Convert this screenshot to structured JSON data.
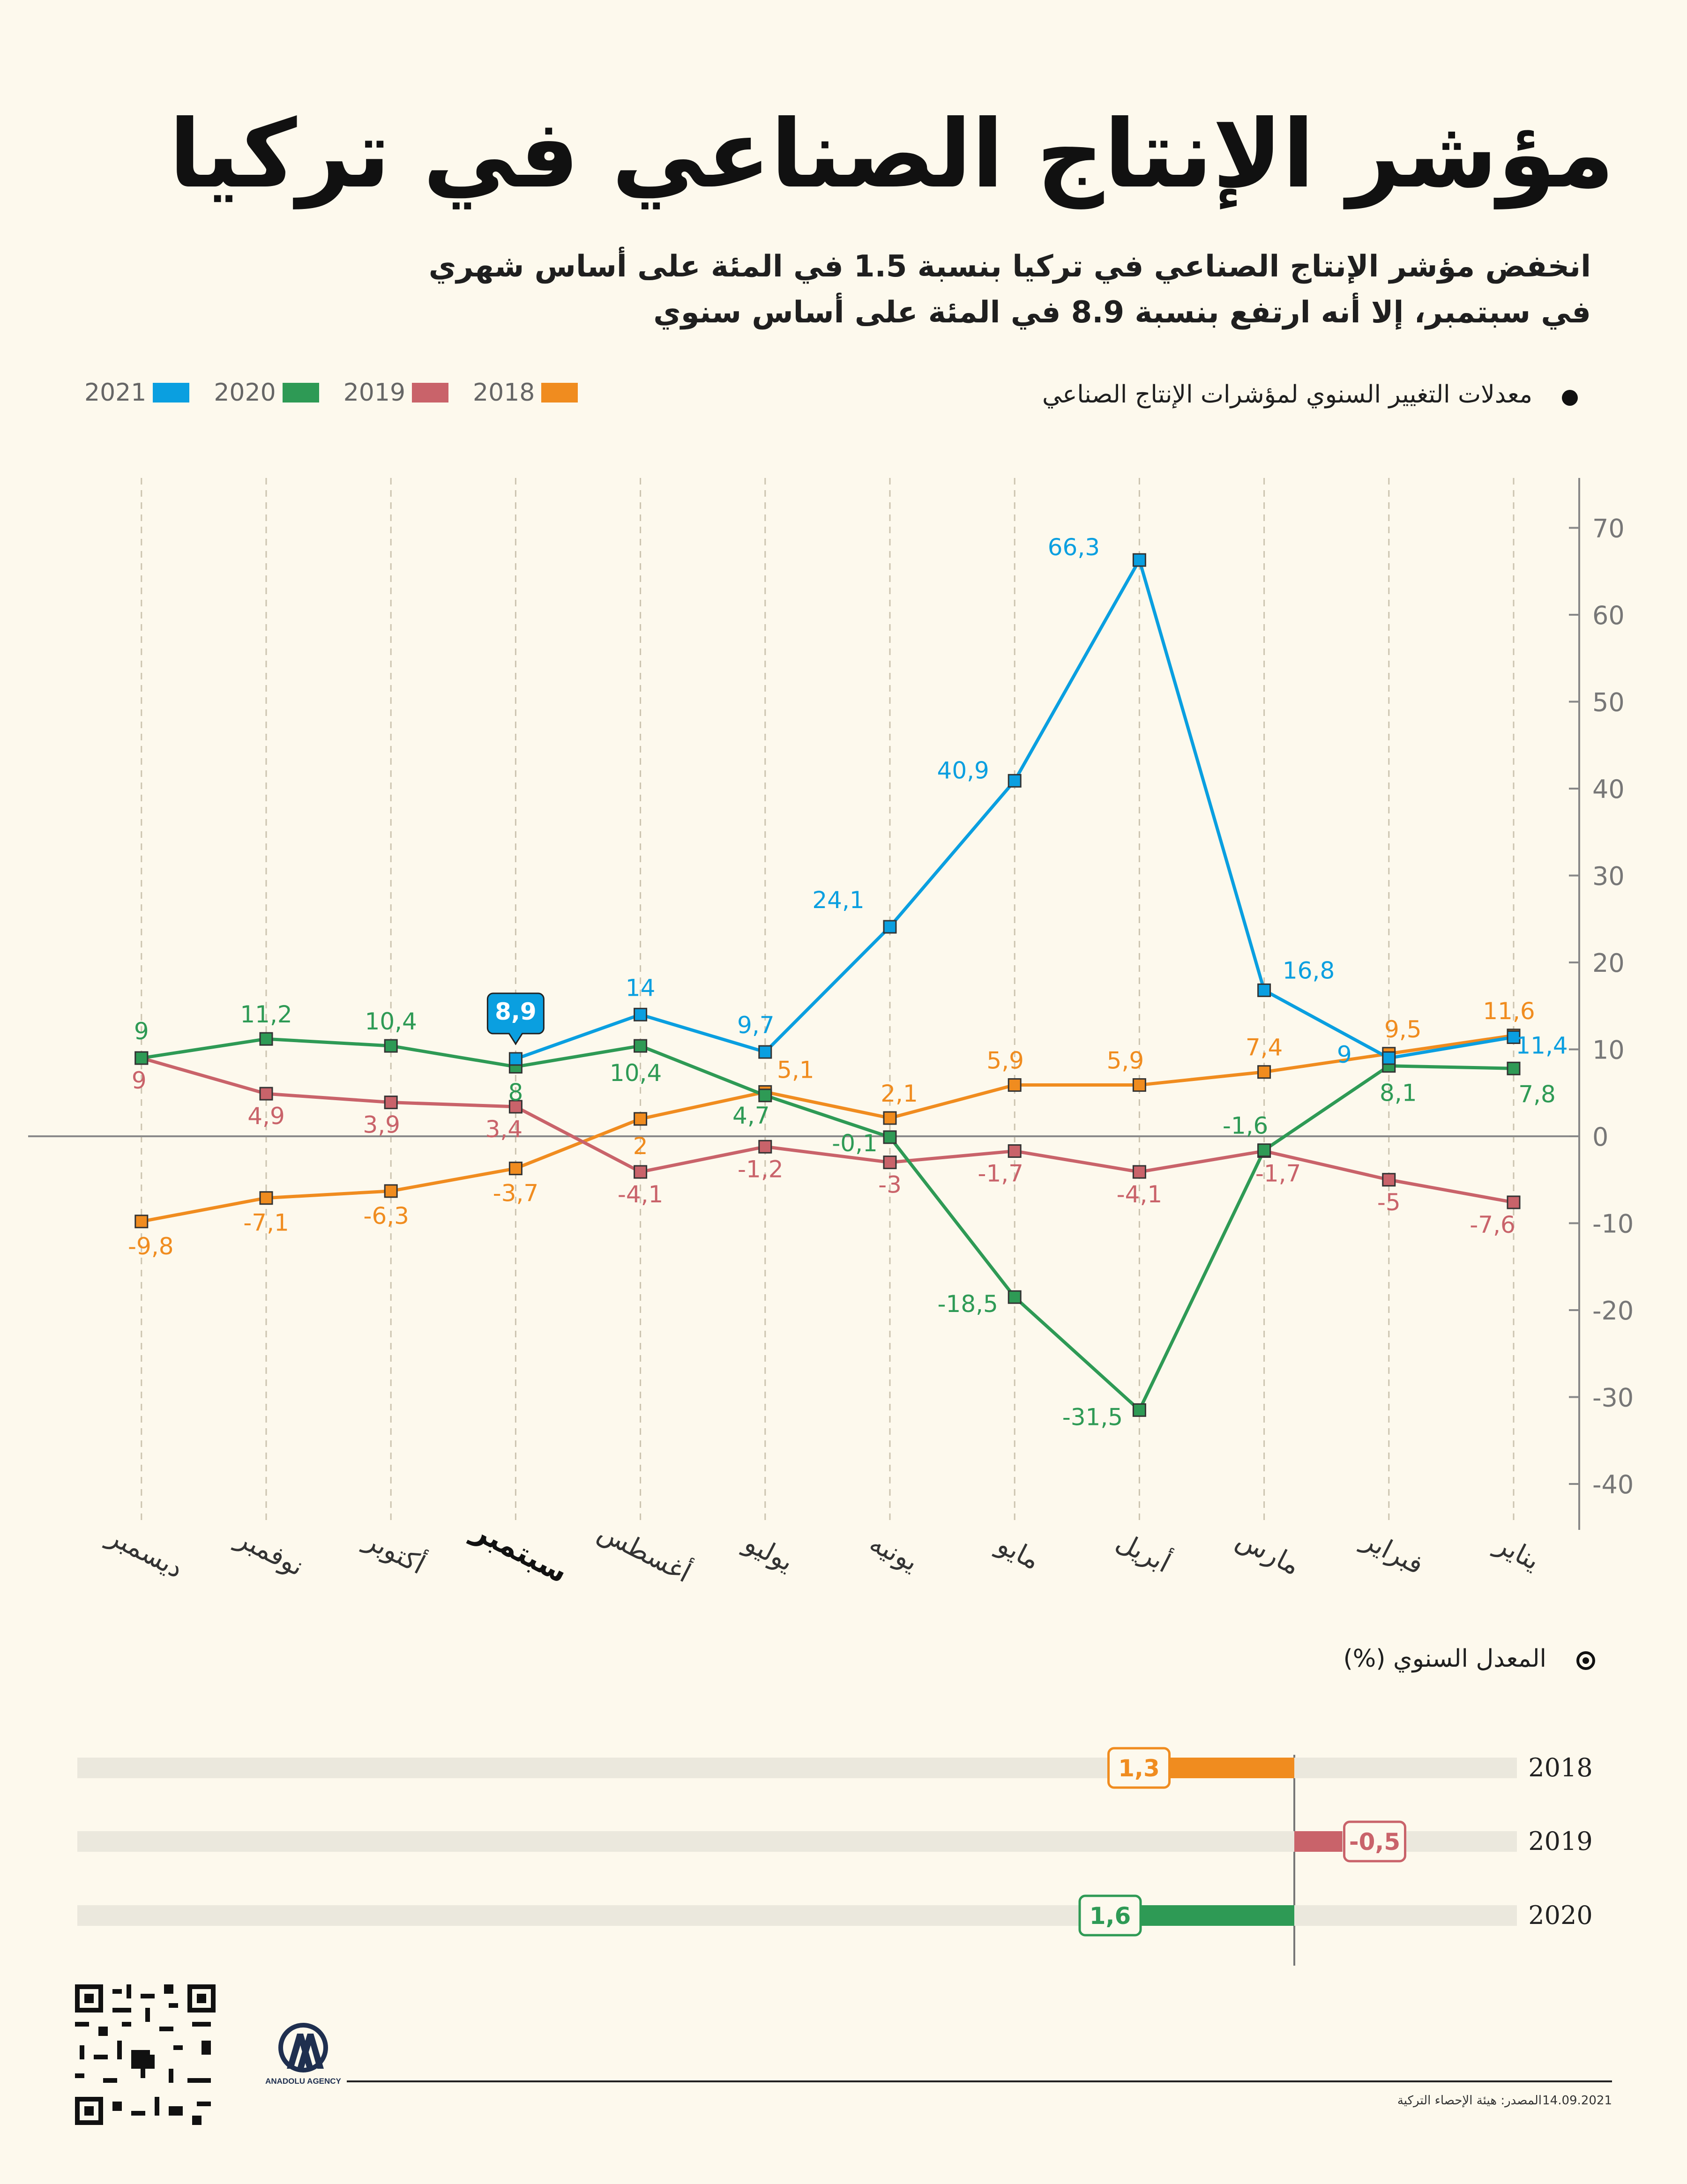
{
  "title": "مؤشر الإنتاج الصناعي في تركيا",
  "subtitle_line1": "انخفض مؤشر الإنتاج الصناعي في تركيا بنسبة 1.5 في المئة على أساس شهري",
  "subtitle_line2": "في سبتمبر، إلا أنه ارتفع بنسبة 8.9 في المئة على أساس سنوي",
  "chart_section_label": "معدلات التغيير السنوي لمؤشرات الإنتاج الصناعي",
  "legend": [
    {
      "label": "2021",
      "color": "#0a9fe0"
    },
    {
      "label": "2020",
      "color": "#2e9a55"
    },
    {
      "label": "2019",
      "color": "#c9636a"
    },
    {
      "label": "2018",
      "color": "#f08c1f"
    }
  ],
  "chart_data": {
    "type": "line",
    "x": [
      "يناير",
      "فبراير",
      "مارس",
      "أبريل",
      "مايو",
      "يونيه",
      "يوليو",
      "أغسطس",
      "سبتمبر",
      "أكتوبر",
      "نوفمبر",
      "ديسمبر"
    ],
    "highlight_x": "سبتمبر",
    "ylim": [
      -45,
      75
    ],
    "yticks": [
      70,
      60,
      50,
      40,
      30,
      20,
      10,
      0,
      -10,
      -20,
      -30,
      -40
    ],
    "grid": "vertical dashed",
    "series": [
      {
        "name": "2021",
        "color": "#0a9fe0",
        "values": [
          11.4,
          9,
          16.8,
          66.3,
          40.9,
          24.1,
          9.7,
          14,
          8.9,
          null,
          null,
          null
        ],
        "labels": [
          "11,4",
          "9",
          "16,8",
          "66,3",
          "40,9",
          "24,1",
          "9,7",
          "14",
          "8,9",
          "",
          "",
          ""
        ]
      },
      {
        "name": "2020",
        "color": "#2e9a55",
        "values": [
          7.8,
          8.1,
          -1.6,
          -31.5,
          -18.5,
          -0.1,
          4.7,
          10.4,
          8,
          10.4,
          11.2,
          9
        ],
        "labels": [
          "7,8",
          "8,1",
          "-1,6",
          "-31,5",
          "-18,5",
          "-0,1",
          "4,7",
          "10,4",
          "8",
          "10,4",
          "11,2",
          "9"
        ]
      },
      {
        "name": "2019",
        "color": "#c9636a",
        "values": [
          -7.6,
          -5,
          -1.7,
          -4.1,
          -1.7,
          -3,
          -1.2,
          -4.1,
          3.4,
          3.9,
          4.9,
          9
        ],
        "labels": [
          "-7,6",
          "-5",
          "-1,7",
          "-4,1",
          "-1,7",
          "-3",
          "-1,2",
          "-4,1",
          "3,4",
          "3,9",
          "4,9",
          "9"
        ]
      },
      {
        "name": "2018",
        "color": "#f08c1f",
        "values": [
          11.6,
          9.5,
          7.4,
          5.9,
          5.9,
          2.1,
          5.1,
          2,
          -3.7,
          -6.3,
          -7.1,
          -9.8
        ],
        "labels": [
          "11,6",
          "9,5",
          "7,4",
          "5,9",
          "5,9",
          "2,1",
          "5,1",
          "2",
          "-3,7",
          "-6,3",
          "-7,1",
          "-9,8"
        ]
      }
    ]
  },
  "annual_section_label": "المعدل السنوي (%)",
  "annual_bars": {
    "type": "bar",
    "categories": [
      "2018",
      "2019",
      "2020"
    ],
    "values": [
      1.3,
      -0.5,
      1.6
    ],
    "labels": [
      "1,3",
      "-0,5",
      "1,6"
    ],
    "colors": [
      "#f08c1f",
      "#c9636a",
      "#2e9a55"
    ]
  },
  "logo_text": "ANADOLU AGENCY",
  "source": "المصدر: هيئة الإحصاء التركية",
  "date": "14.09.2021"
}
